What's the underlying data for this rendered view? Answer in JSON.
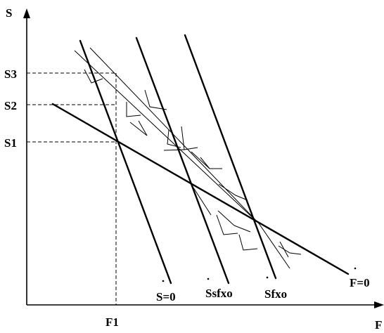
{
  "axes": {
    "x_label": "F",
    "y_label": "S"
  },
  "y_ticks": [
    "S3",
    "S2",
    "S1"
  ],
  "x_ticks": [
    "F1"
  ],
  "curves": {
    "s_dot_zero": "S=0",
    "f_dot_zero": "F=0",
    "ssfxo": "Ssfxo",
    "sfxo": "Sfxo"
  }
}
